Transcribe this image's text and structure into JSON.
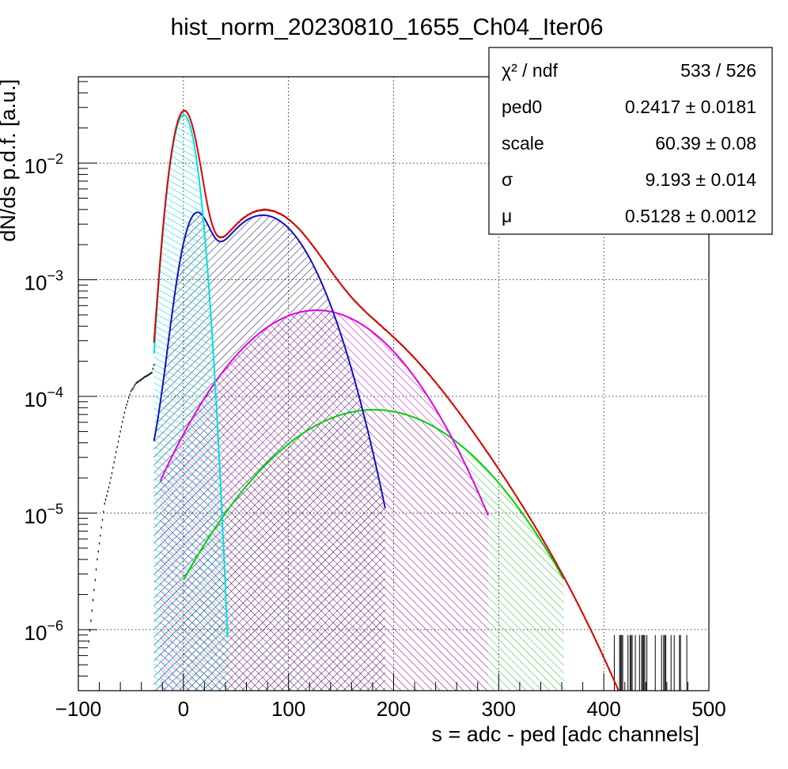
{
  "chart_data": {
    "type": "line",
    "title": "hist_norm_20230810_1655_Ch04_Iter06",
    "xlabel": "s = adc - ped [adc channels]",
    "ylabel": "dN/ds p.d.f. [a.u.]",
    "xlim": [
      -100,
      500
    ],
    "ylim": [
      3e-07,
      0.055
    ],
    "log_y": true,
    "grid": true,
    "x_ticks": [
      {
        "value": -100,
        "label": "−100"
      },
      {
        "value": 0,
        "label": "0"
      },
      {
        "value": 100,
        "label": "100"
      },
      {
        "value": 200,
        "label": "200"
      },
      {
        "value": 300,
        "label": "300"
      },
      {
        "value": 400,
        "label": "400"
      },
      {
        "value": 500,
        "label": "500"
      }
    ],
    "y_ticks": [
      {
        "value": 1e-06,
        "base": "10",
        "exp": "−6"
      },
      {
        "value": 1e-05,
        "base": "10",
        "exp": "−5"
      },
      {
        "value": 0.0001,
        "base": "10",
        "exp": "−4"
      },
      {
        "value": 0.001,
        "base": "10",
        "exp": "−3"
      },
      {
        "value": 0.01,
        "base": "10",
        "exp": "−2"
      }
    ],
    "stats_box": {
      "placement": "top-right",
      "rows": [
        {
          "name": "χ² / ndf",
          "value": "533 / 526"
        },
        {
          "name": "ped0",
          "value": "0.2417 ± 0.0181"
        },
        {
          "name": "scale",
          "value": "60.39 ± 0.08"
        },
        {
          "name": "σ",
          "value": "9.193 ± 0.014"
        },
        {
          "name": "μ",
          "value": "0.5128 ± 0.0012"
        }
      ]
    },
    "fit_params": {
      "ped0": 0.2417,
      "scale": 60.39,
      "sigma": 9.193,
      "mu": 0.5128
    },
    "series": [
      {
        "color": "#000000",
        "style": "errorbars",
        "x": [
          -90,
          -82,
          -75,
          -70,
          -65,
          -60,
          -55,
          -50,
          -45,
          -40,
          -35,
          -30,
          -27
        ],
        "y": [
          8e-07,
          4e-06,
          1.2e-05,
          1.8e-05,
          3e-05,
          5e-05,
          8e-05,
          0.00011,
          0.00013,
          0.00014,
          0.00015,
          0.00016,
          0.0002
        ]
      },
      {
        "color": "#00e0e0",
        "style": "hatched",
        "x_range": [
          -28,
          42
        ]
      },
      {
        "color": "#1010cc",
        "style": "hatched",
        "x_range": [
          -28,
          192
        ]
      },
      {
        "color": "#e000e0",
        "style": "hatched",
        "x_range": [
          -22,
          290
        ]
      },
      {
        "color": "#00d000",
        "style": "hatched",
        "x_range": [
          0,
          362
        ]
      },
      {
        "color": "#e00000",
        "style": "line",
        "x_range": [
          -28,
          440
        ]
      }
    ],
    "colors": {
      "data": "#000000",
      "pedestal": "#00e0e0",
      "one_pe": "#1010cc",
      "two_pe": "#e000e0",
      "three_pe": "#00d000",
      "total_fit": "#e00000"
    }
  }
}
